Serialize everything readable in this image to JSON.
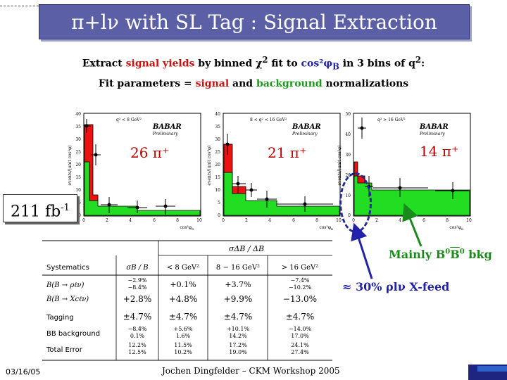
{
  "slide": {
    "title": "π+lν with SL Tag : Signal Extraction",
    "line1": {
      "a": "Extract ",
      "b": "signal yields",
      "c": " by binned χ",
      "d": "2",
      "e": " fit to ",
      "f": "cos²φ",
      "g": "B",
      "h": " in 3 bins of q",
      "i": "2",
      "j": ":"
    },
    "line2": {
      "a": "Fit parameters = ",
      "b": "signal",
      "c": " and ",
      "d": "background",
      "e": " normalizations"
    },
    "lumi": "211 fb",
    "lumi_exp": "-1",
    "note_mainly": "Mainly B",
    "note_mainly_sup": "0",
    "note_bbar": "B",
    "note_bbar_sup": "0",
    "note_bkg": " bkg",
    "note_feed": "≈ 30% ρlν X-feed",
    "date": "03/16/05",
    "footer": "Jochen Dingfelder – CKM Workshop 2005"
  },
  "plots": [
    {
      "qlabel": "q² < 8 GeV²",
      "count": "26 π⁺",
      "xlabel": "cos²φ",
      "xsub": "B",
      "ylabel": "events/(unit cos²φ)",
      "babar": "BABAR",
      "prelim": "Preliminary",
      "yticks": [
        "40",
        "35",
        "30",
        "25",
        "20",
        "15",
        "10",
        "5",
        "0"
      ],
      "xticks": [
        "0",
        "2",
        "4",
        "6",
        "8",
        "10"
      ]
    },
    {
      "qlabel": "8 < q² < 16 GeV²",
      "count": "21 π⁺",
      "xlabel": "cos²φ",
      "xsub": "B",
      "ylabel": "events/(unit cos²φ)",
      "babar": "BABAR",
      "prelim": "Preliminary",
      "yticks": [
        "40",
        "35",
        "30",
        "25",
        "20",
        "15",
        "10",
        "5",
        "0"
      ],
      "xticks": [
        "0",
        "2",
        "4",
        "6",
        "8",
        "10"
      ]
    },
    {
      "qlabel": "q² > 16 GeV²",
      "count": "14 π⁺",
      "xlabel": "cos²φ",
      "xsub": "B",
      "ylabel": "events/(unit cos²φ)",
      "babar": "BABAR",
      "prelim": "Preliminary",
      "yticks": [
        "50",
        "40",
        "30",
        "20",
        "10",
        "0"
      ],
      "xticks": [
        "0",
        "2",
        "4",
        "6",
        "8",
        "10"
      ]
    }
  ],
  "table": {
    "top_header": "σΔB / ΔB",
    "headers": [
      "Systematics",
      "σB / B",
      "< 8 GeV²",
      "8 − 16 GeV²",
      "> 16 GeV²"
    ],
    "rows": [
      {
        "name": "B(B → ρℓν)",
        "cells": [
          [
            "−2.9%",
            "−8.4%"
          ],
          [
            "+0.1%"
          ],
          [
            "+3.7%"
          ],
          [
            "−7.4%",
            "−10.2%"
          ]
        ]
      },
      {
        "name": "B(B → Xcℓν)",
        "cells": [
          [
            "+2.8%"
          ],
          [
            "+4.8%"
          ],
          [
            "+9.9%"
          ],
          [
            "−13.0%"
          ]
        ]
      },
      {
        "name": "Tagging",
        "cells": [
          [
            "±4.7%"
          ],
          [
            "±4.7%"
          ],
          [
            "±4.7%"
          ],
          [
            "±4.7%"
          ]
        ]
      },
      {
        "name": "BB background",
        "cells": [
          [
            "−8.4%",
            "0.1%"
          ],
          [
            "+5.6%",
            "1.6%"
          ],
          [
            "+10.1%",
            "14.2%"
          ],
          [
            "−14.0%",
            "17.0%"
          ]
        ]
      },
      {
        "name": "Total Error",
        "cells": [
          [
            "12.2%",
            "12.5%"
          ],
          [
            "11.5%",
            "10.2%"
          ],
          [
            "17.2%",
            "19.0%"
          ],
          [
            "24.1%",
            "27.4%"
          ]
        ]
      }
    ]
  }
}
